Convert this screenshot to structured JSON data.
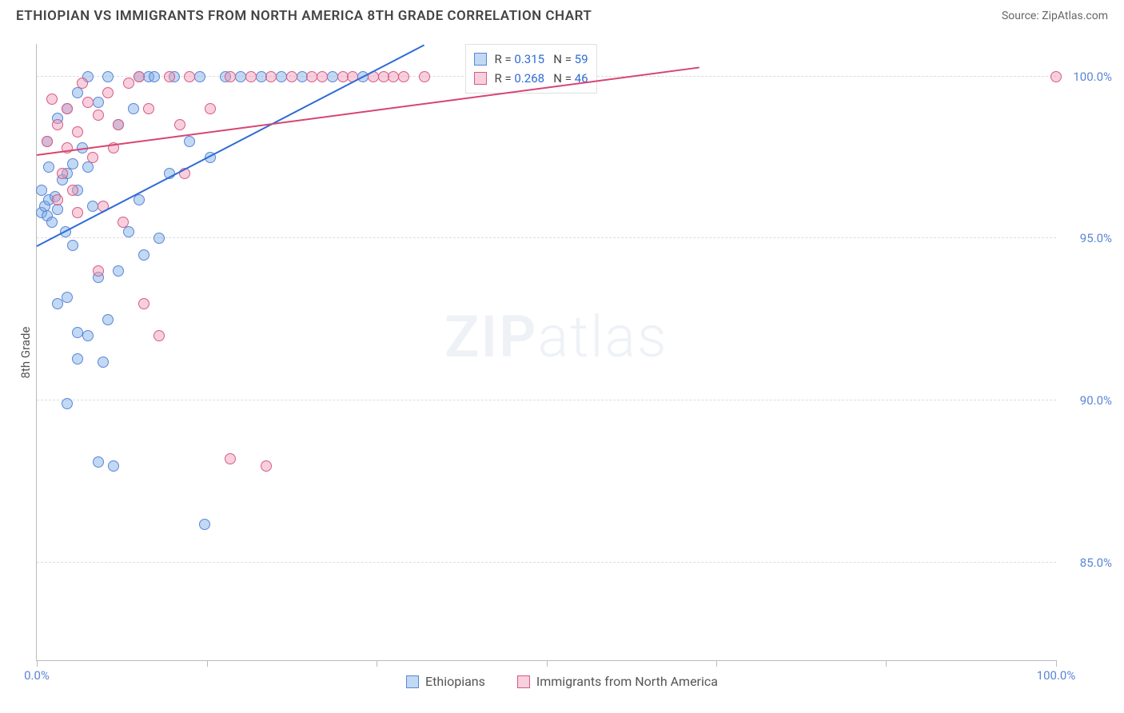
{
  "header": {
    "title": "ETHIOPIAN VS IMMIGRANTS FROM NORTH AMERICA 8TH GRADE CORRELATION CHART",
    "source_prefix": "Source: ",
    "source_name": "ZipAtlas.com"
  },
  "chart": {
    "type": "scatter",
    "y_axis_label": "8th Grade",
    "x_range": [
      0,
      100
    ],
    "y_range": [
      82,
      101
    ],
    "y_ticks": [
      85.0,
      90.0,
      95.0,
      100.0
    ],
    "y_tick_labels": [
      "85.0%",
      "90.0%",
      "95.0%",
      "100.0%"
    ],
    "y_tick_color": "#5b85d6",
    "x_ticks": [
      0,
      16.67,
      33.33,
      50,
      66.67,
      83.33,
      100
    ],
    "x_tick_labels_shown": {
      "0": "0.0%",
      "100": "100.0%"
    },
    "x_tick_label_color": "#5b85d6",
    "grid_color": "#dddddd",
    "axis_color": "#bbbbbb",
    "background_color": "#ffffff",
    "watermark": {
      "zip": "ZIP",
      "atlas": "atlas",
      "color": "#7a9cc6"
    }
  },
  "series": [
    {
      "name": "Ethiopians",
      "label": "Ethiopians",
      "fill": "rgba(120,170,230,0.45)",
      "stroke": "#5b85d6",
      "R": "0.315",
      "N": "59",
      "trend": {
        "x1": 0,
        "y1": 94.8,
        "x2": 38,
        "y2": 101,
        "color": "#2e6bd6"
      },
      "points": [
        [
          0.5,
          95.8
        ],
        [
          0.8,
          96.0
        ],
        [
          1.0,
          95.7
        ],
        [
          1.2,
          96.2
        ],
        [
          1.5,
          95.5
        ],
        [
          1.8,
          96.3
        ],
        [
          2.0,
          95.9
        ],
        [
          2.5,
          96.8
        ],
        [
          3.0,
          97.0
        ],
        [
          3.5,
          97.3
        ],
        [
          4.0,
          96.5
        ],
        [
          4.5,
          97.8
        ],
        [
          5.0,
          97.2
        ],
        [
          2.0,
          93.0
        ],
        [
          3.0,
          93.2
        ],
        [
          4.0,
          92.1
        ],
        [
          5.0,
          92.0
        ],
        [
          6.0,
          93.8
        ],
        [
          7.0,
          92.5
        ],
        [
          4.0,
          91.3
        ],
        [
          6.5,
          91.2
        ],
        [
          8.0,
          94.0
        ],
        [
          9.0,
          95.2
        ],
        [
          10.0,
          96.2
        ],
        [
          3.0,
          89.9
        ],
        [
          6.0,
          88.1
        ],
        [
          7.5,
          88.0
        ],
        [
          10.0,
          100.0
        ],
        [
          11.0,
          100.0
        ],
        [
          11.5,
          100.0
        ],
        [
          15.0,
          98.0
        ],
        [
          16.0,
          100.0
        ],
        [
          17.0,
          97.5
        ],
        [
          20.0,
          100.0
        ],
        [
          22.0,
          100.0
        ],
        [
          24.0,
          100.0
        ],
        [
          16.5,
          86.2
        ],
        [
          10.5,
          94.5
        ],
        [
          12.0,
          95.0
        ],
        [
          13.0,
          97.0
        ],
        [
          8.0,
          98.5
        ],
        [
          9.5,
          99.0
        ],
        [
          6.0,
          99.2
        ],
        [
          7.0,
          100.0
        ],
        [
          1.0,
          98.0
        ],
        [
          2.0,
          98.7
        ],
        [
          3.0,
          99.0
        ],
        [
          4.0,
          99.5
        ],
        [
          5.0,
          100.0
        ],
        [
          0.5,
          96.5
        ],
        [
          1.2,
          97.2
        ],
        [
          2.8,
          95.2
        ],
        [
          3.5,
          94.8
        ],
        [
          5.5,
          96.0
        ],
        [
          13.5,
          100.0
        ],
        [
          18.5,
          100.0
        ],
        [
          26.0,
          100.0
        ],
        [
          29.0,
          100.0
        ],
        [
          32.0,
          100.0
        ]
      ]
    },
    {
      "name": "Immigrants from North America",
      "label": "Immigrants from North America",
      "fill": "rgba(240,150,180,0.45)",
      "stroke": "#d65b85",
      "R": "0.268",
      "N": "46",
      "trend": {
        "x1": 0,
        "y1": 97.6,
        "x2": 65,
        "y2": 100.3,
        "color": "#d64570"
      },
      "points": [
        [
          1.0,
          98.0
        ],
        [
          2.0,
          98.5
        ],
        [
          3.0,
          99.0
        ],
        [
          4.0,
          98.3
        ],
        [
          5.0,
          99.2
        ],
        [
          6.0,
          98.8
        ],
        [
          7.0,
          99.5
        ],
        [
          8.0,
          98.5
        ],
        [
          9.0,
          99.8
        ],
        [
          10.0,
          100.0
        ],
        [
          11.0,
          99.0
        ],
        [
          2.5,
          97.0
        ],
        [
          3.5,
          96.5
        ],
        [
          5.5,
          97.5
        ],
        [
          7.5,
          97.8
        ],
        [
          4.0,
          95.8
        ],
        [
          6.0,
          94.0
        ],
        [
          8.5,
          95.5
        ],
        [
          10.5,
          93.0
        ],
        [
          13.0,
          100.0
        ],
        [
          14.0,
          98.5
        ],
        [
          15.0,
          100.0
        ],
        [
          17.0,
          99.0
        ],
        [
          19.0,
          100.0
        ],
        [
          21.0,
          100.0
        ],
        [
          23.0,
          100.0
        ],
        [
          25.0,
          100.0
        ],
        [
          27.0,
          100.0
        ],
        [
          28.0,
          100.0
        ],
        [
          30.0,
          100.0
        ],
        [
          31.0,
          100.0
        ],
        [
          33.0,
          100.0
        ],
        [
          34.0,
          100.0
        ],
        [
          35.0,
          100.0
        ],
        [
          36.0,
          100.0
        ],
        [
          38.0,
          100.0
        ],
        [
          19.0,
          88.2
        ],
        [
          22.5,
          88.0
        ],
        [
          1.5,
          99.3
        ],
        [
          3.0,
          97.8
        ],
        [
          4.5,
          99.8
        ],
        [
          2.0,
          96.2
        ],
        [
          6.5,
          96.0
        ],
        [
          12.0,
          92.0
        ],
        [
          14.5,
          97.0
        ],
        [
          100.0,
          100.0
        ]
      ]
    }
  ],
  "stats_box": {
    "r_label": "R =",
    "n_label": "N =",
    "r_color": "#2e6bd6",
    "n_color": "#2e6bd6"
  },
  "bottom_legend": {
    "items": [
      "Ethiopians",
      "Immigrants from North America"
    ]
  }
}
